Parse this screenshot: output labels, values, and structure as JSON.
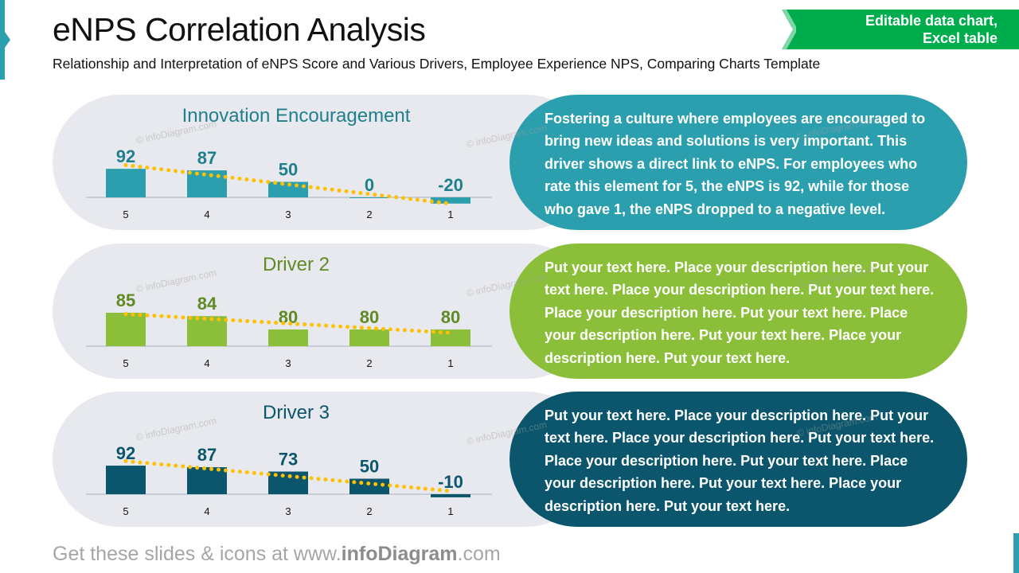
{
  "header": {
    "title": "eNPS Correlation Analysis",
    "subtitle": "Relationship and Interpretation of eNPS Score and Various Drivers, Employee Experience NPS, Comparing Charts Template",
    "badge_line1": "Editable data chart,",
    "badge_line2": "Excel table"
  },
  "footer": {
    "prefix": "Get these slides & icons at www.",
    "brand": "infoDiagram",
    "suffix": ".com"
  },
  "watermark": "© infoDiagram.com",
  "colors": {
    "teal": "#2b9fae",
    "green": "#8bbf3a",
    "dark_teal": "#0b566c",
    "trend": "#ffc000",
    "panel": "#e7e9ee",
    "badge": "#00ad4d"
  },
  "chart_data": [
    {
      "type": "bar",
      "title": "Innovation Encouragement",
      "categories": [
        "5",
        "4",
        "3",
        "2",
        "1"
      ],
      "values": [
        92,
        87,
        50,
        0,
        -20
      ],
      "ylim": [
        -20,
        100
      ],
      "trendline": "linear dotted",
      "color": "#2b9fae",
      "title_color": "#1f7f8c",
      "label_color": "#1f7f8c"
    },
    {
      "type": "bar",
      "title": "Driver 2",
      "categories": [
        "5",
        "4",
        "3",
        "2",
        "1"
      ],
      "values": [
        85,
        84,
        80,
        80,
        80
      ],
      "ylim": [
        75,
        90
      ],
      "trendline": "linear dotted",
      "color": "#8bbf3a",
      "title_color": "#5f8a24",
      "label_color": "#5f8a24"
    },
    {
      "type": "bar",
      "title": "Driver 3",
      "categories": [
        "5",
        "4",
        "3",
        "2",
        "1"
      ],
      "values": [
        92,
        87,
        73,
        50,
        -10
      ],
      "ylim": [
        -20,
        100
      ],
      "trendline": "linear dotted",
      "color": "#0b566c",
      "title_color": "#0b566c",
      "label_color": "#0b566c"
    }
  ],
  "descriptions": [
    "Fostering a culture where employees are encouraged to bring new ideas and solutions is very important. This driver shows a direct link to eNPS. For employees who rate this element for 5, the eNPS is 92, while for those who gave 1, the eNPS dropped to a negative level.",
    "Put your text here. Place your description here. Put your text here. Place your description here. Put your text here. Place your description here. Put your text here. Place your description here. Put your text here. Place your description here. Put your text here.",
    "Put your text here. Place your description here. Put your text here. Place your description here. Put your text here. Place your description here. Put your text here. Place your description here. Put your text here. Place your description here. Put your text here."
  ]
}
